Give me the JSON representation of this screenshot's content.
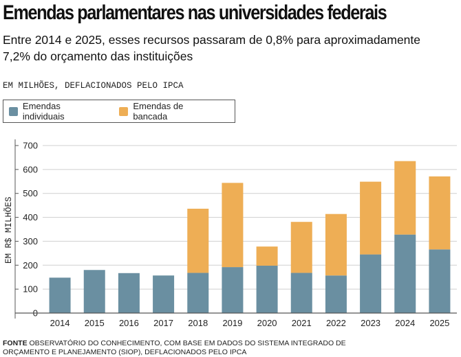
{
  "header": {
    "title": "Emendas parlamentares nas universidades federais",
    "subtitle": "Entre 2014 e 2025, esses recursos passaram de 0,8% para aproximadamente 7,2% do orçamento das instituições",
    "unit_note": "EM MILHÕES, DEFLACIONADOS PELO IPCA"
  },
  "footer": {
    "source_label": "FONTE",
    "source_text": "OBSERVATÓRIO DO CONHECIMENTO, COM BASE EM DADOS DO SISTEMA INTEGRADO DE ORÇAMENTO E PLANEJAMENTO (SIOP), DEFLACIONADOS PELO IPCA"
  },
  "colors": {
    "individuais": "#6a8fa1",
    "bancada": "#eeae55",
    "grid": "#cfcfcf",
    "axis": "#555555"
  },
  "chart_data": {
    "type": "bar",
    "stacked": true,
    "categories": [
      "2014",
      "2015",
      "2016",
      "2017",
      "2018",
      "2019",
      "2020",
      "2021",
      "2022",
      "2023",
      "2024",
      "2025"
    ],
    "series": [
      {
        "name": "Emendas individuais",
        "values": [
          148,
          180,
          167,
          157,
          168,
          192,
          198,
          168,
          157,
          245,
          328,
          266
        ]
      },
      {
        "name": "Emendas de bancada",
        "values": [
          0,
          0,
          0,
          0,
          268,
          352,
          80,
          213,
          257,
          304,
          307,
          305
        ]
      }
    ],
    "ylabel": "EM R$ MILHÕES",
    "ylim": [
      0,
      700
    ],
    "yticks": [
      0,
      100,
      200,
      300,
      400,
      500,
      600,
      700
    ],
    "grid": true,
    "legend_position": "top-left"
  }
}
